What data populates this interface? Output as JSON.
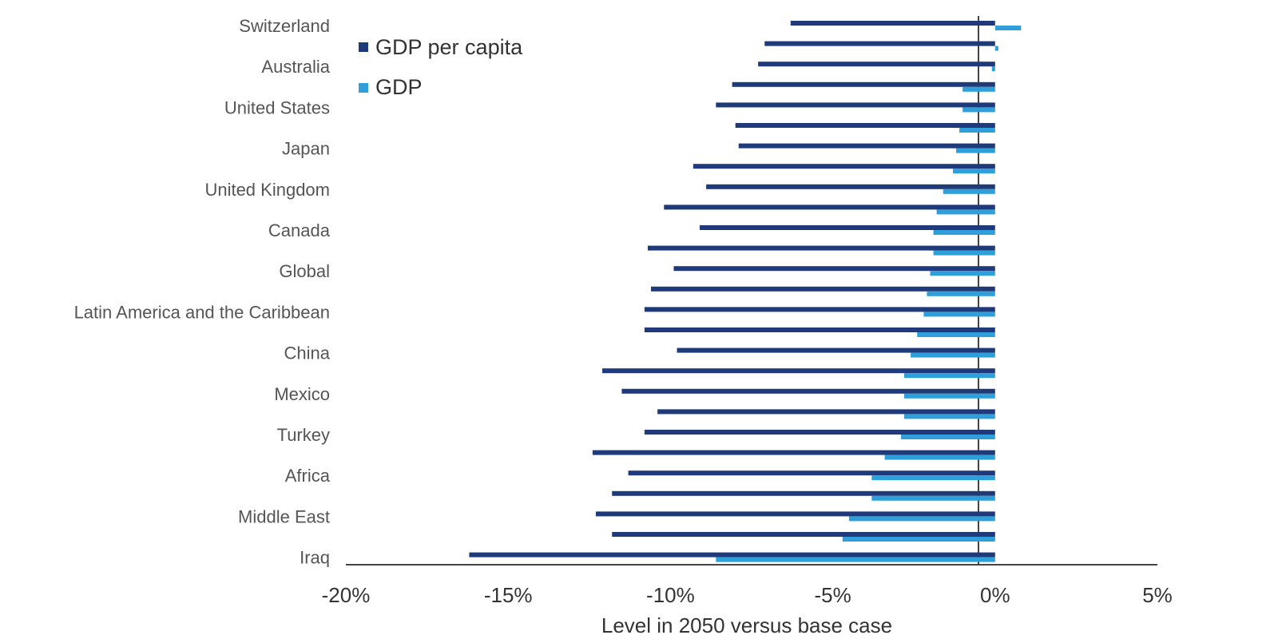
{
  "chart_data": {
    "type": "bar",
    "orientation": "horizontal",
    "xlabel": "Level in 2050 versus base case",
    "xlim": [
      -20,
      5
    ],
    "x_ticks": [
      "-20%",
      "-15%",
      "-10%",
      "-5%",
      "0%",
      "5%"
    ],
    "x_tick_values": [
      -20,
      -15,
      -10,
      -5,
      0,
      5
    ],
    "legend_position": "top-left",
    "colors": {
      "gdp_per_capita": "#1f3a7a",
      "gdp": "#2e9fd8"
    },
    "rows": [
      {
        "gdp_per_capita": -6.3,
        "gdp": 0.8
      },
      {
        "gdp_per_capita": -7.1,
        "gdp": 0.1
      },
      {
        "gdp_per_capita": -7.3,
        "gdp": -0.1
      },
      {
        "gdp_per_capita": -8.1,
        "gdp": -1.0
      },
      {
        "gdp_per_capita": -8.6,
        "gdp": -1.0
      },
      {
        "gdp_per_capita": -8.0,
        "gdp": -1.1
      },
      {
        "gdp_per_capita": -7.9,
        "gdp": -1.2
      },
      {
        "gdp_per_capita": -9.3,
        "gdp": -1.3
      },
      {
        "gdp_per_capita": -8.9,
        "gdp": -1.6
      },
      {
        "gdp_per_capita": -10.2,
        "gdp": -1.8
      },
      {
        "gdp_per_capita": -9.1,
        "gdp": -1.9
      },
      {
        "gdp_per_capita": -10.7,
        "gdp": -1.9
      },
      {
        "gdp_per_capita": -9.9,
        "gdp": -2.0
      },
      {
        "gdp_per_capita": -10.6,
        "gdp": -2.1
      },
      {
        "gdp_per_capita": -10.8,
        "gdp": -2.2
      },
      {
        "gdp_per_capita": -10.8,
        "gdp": -2.4
      },
      {
        "gdp_per_capita": -9.8,
        "gdp": -2.6
      },
      {
        "gdp_per_capita": -12.1,
        "gdp": -2.8
      },
      {
        "gdp_per_capita": -11.5,
        "gdp": -2.8
      },
      {
        "gdp_per_capita": -10.4,
        "gdp": -2.8
      },
      {
        "gdp_per_capita": -10.8,
        "gdp": -2.9
      },
      {
        "gdp_per_capita": -12.4,
        "gdp": -3.4
      },
      {
        "gdp_per_capita": -11.3,
        "gdp": -3.8
      },
      {
        "gdp_per_capita": -11.8,
        "gdp": -3.8
      },
      {
        "gdp_per_capita": -12.3,
        "gdp": -4.5
      },
      {
        "gdp_per_capita": -11.8,
        "gdp": -4.7
      },
      {
        "gdp_per_capita": -16.2,
        "gdp": -8.6
      }
    ],
    "row_labels": [
      {
        "row": 0,
        "text": "Switzerland"
      },
      {
        "row": 2,
        "text": "Australia"
      },
      {
        "row": 4,
        "text": "United States"
      },
      {
        "row": 6,
        "text": "Japan"
      },
      {
        "row": 8,
        "text": "United Kingdom"
      },
      {
        "row": 10,
        "text": "Canada"
      },
      {
        "row": 12,
        "text": "Global"
      },
      {
        "row": 14,
        "text": "Latin America and the Caribbean"
      },
      {
        "row": 16,
        "text": "China"
      },
      {
        "row": 18,
        "text": "Mexico"
      },
      {
        "row": 20,
        "text": "Turkey"
      },
      {
        "row": 22,
        "text": "Africa"
      },
      {
        "row": 24,
        "text": "Middle East"
      },
      {
        "row": 26,
        "text": "Iraq"
      }
    ],
    "series": [
      {
        "key": "gdp_per_capita",
        "name": "GDP per capita"
      },
      {
        "key": "gdp",
        "name": "GDP"
      }
    ]
  }
}
